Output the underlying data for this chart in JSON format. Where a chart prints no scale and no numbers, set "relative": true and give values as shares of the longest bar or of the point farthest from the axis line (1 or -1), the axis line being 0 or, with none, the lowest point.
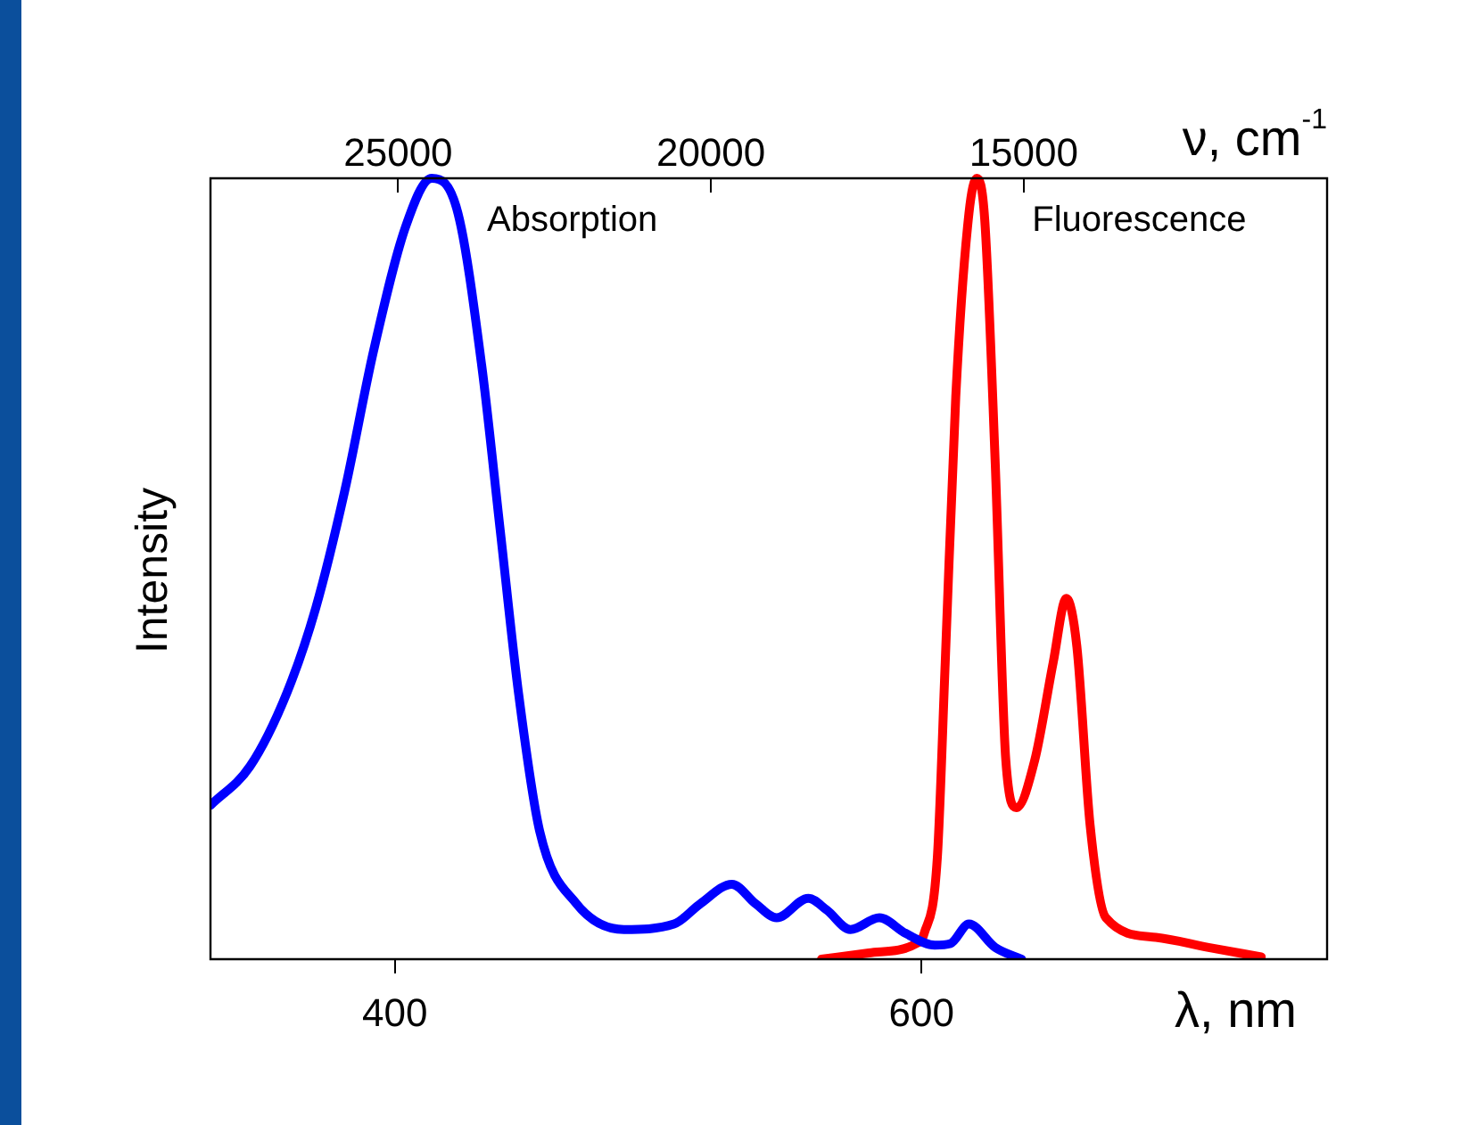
{
  "chart_data": {
    "type": "line",
    "relative": true,
    "xlabel": "λ, nm",
    "x2label": "ν, cm$^{-1}$",
    "ylabel": "Intensity",
    "xlim": [
      330,
      754
    ],
    "xticks": [
      400,
      600
    ],
    "x2lim": [
      28000,
      10150
    ],
    "x2ticks": [
      25000,
      20000,
      15000
    ],
    "grid": false,
    "legend": false,
    "marker": "none",
    "line_style": "solid",
    "series": [
      {
        "name": "Absorption",
        "color": "#0000ff",
        "x": [
          330,
          345,
          359,
          370,
          381,
          392,
          404,
          414,
          424,
          433,
          440,
          447,
          455,
          469,
          487,
          506,
          516,
          528,
          537,
          545,
          557,
          564,
          573,
          584,
          594,
          605,
          611,
          618,
          628,
          638
        ],
        "values": [
          0.197,
          0.247,
          0.341,
          0.45,
          0.6,
          0.78,
          0.937,
          1,
          0.955,
          0.76,
          0.55,
          0.34,
          0.164,
          0.071,
          0.038,
          0.045,
          0.071,
          0.096,
          0.071,
          0.053,
          0.078,
          0.063,
          0.038,
          0.053,
          0.033,
          0.018,
          0.02,
          0.045,
          0.015,
          0
        ]
      },
      {
        "name": "Fluorescence",
        "color": "#ff0000",
        "x": [
          562,
          580,
          598,
          601,
          606,
          609,
          613,
          618,
          621,
          624,
          628,
          632,
          636,
          643,
          650,
          655,
          659,
          664,
          670,
          689,
          709,
          729
        ],
        "values": [
          0,
          0.008,
          0.02,
          0.033,
          0.13,
          0.38,
          0.72,
          0.955,
          1,
          0.947,
          0.634,
          0.255,
          0.194,
          0.255,
          0.38,
          0.462,
          0.4,
          0.172,
          0.053,
          0.028,
          0.015,
          0.003
        ]
      }
    ]
  }
}
